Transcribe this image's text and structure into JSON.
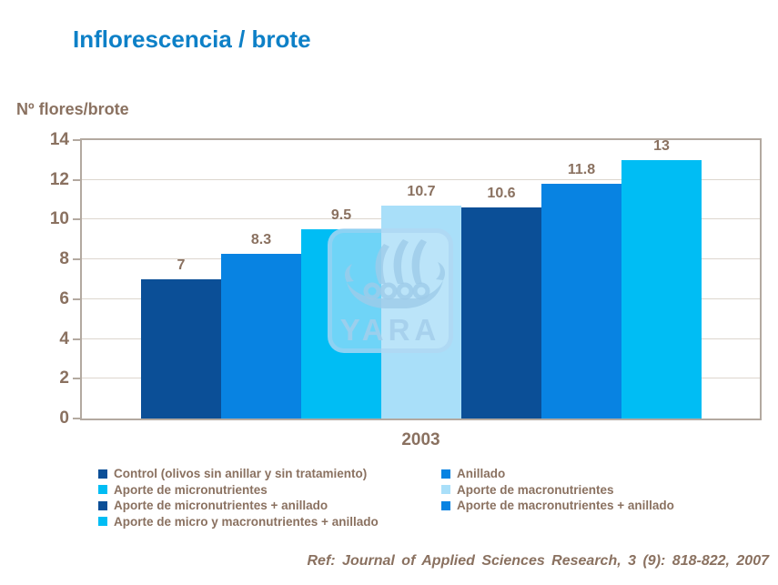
{
  "title": "Inflorescencia / brote",
  "y_axis_label": "Nº flores/brote",
  "x_axis_label": "2003",
  "reference": "Ref: Journal of Applied Sciences Research, 3 (9): 818-822, 2007",
  "watermark": {
    "text": "YARA",
    "icon": "viking-ship-icon"
  },
  "colors": {
    "title_blue": "#0d80c7",
    "text_brown": "#8a7160",
    "axis_border": "#b3a9a0",
    "gridline": "#ddd6ce",
    "navy": "#0b4f97",
    "medium_blue": "#0883e2",
    "cyan": "#00bdf4",
    "light_blue": "#a9dff9"
  },
  "chart_data": {
    "type": "bar",
    "categories": [
      "2003"
    ],
    "series": [
      {
        "name": "Control (olivos sin anillar y sin tratamiento)",
        "values": [
          7
        ],
        "color": "#0b4f97"
      },
      {
        "name": "Anillado",
        "values": [
          8.3
        ],
        "color": "#0883e2"
      },
      {
        "name": "Aporte de micronutrientes",
        "values": [
          9.5
        ],
        "color": "#00bdf4"
      },
      {
        "name": "Aporte de macronutrientes",
        "values": [
          10.7
        ],
        "color": "#a9dff9"
      },
      {
        "name": "Aporte de micronutrientes + anillado",
        "values": [
          10.6
        ],
        "color": "#0b4f97"
      },
      {
        "name": "Aporte de macronutrientes + anillado",
        "values": [
          11.8
        ],
        "color": "#0883e2"
      },
      {
        "name": "Aporte de micro y macronutrientes + anillado",
        "values": [
          13
        ],
        "color": "#00bdf4"
      }
    ],
    "title": "Inflorescencia / brote",
    "xlabel": "2003",
    "ylabel": "Nº flores/brote",
    "ylim": [
      0,
      14
    ],
    "yticks": [
      0,
      2,
      4,
      6,
      8,
      10,
      12,
      14
    ],
    "grid": true,
    "legend_position": "bottom"
  },
  "legend": {
    "columns": [
      {
        "items": [
          {
            "label": "Control (olivos sin anillar y sin tratamiento)",
            "color": "#0b4f97"
          },
          {
            "label": "Aporte de micronutrientes",
            "color": "#00bdf4"
          },
          {
            "label": "Aporte de micronutrientes + anillado",
            "color": "#0b4f97"
          },
          {
            "label": "Aporte de micro y macronutrientes + anillado",
            "color": "#00bdf4"
          }
        ]
      },
      {
        "items": [
          {
            "label": "Anillado",
            "color": "#0883e2"
          },
          {
            "label": "Aporte de macronutrientes",
            "color": "#a9dff9"
          },
          {
            "label": "Aporte de macronutrientes + anillado",
            "color": "#0883e2"
          }
        ]
      }
    ]
  }
}
